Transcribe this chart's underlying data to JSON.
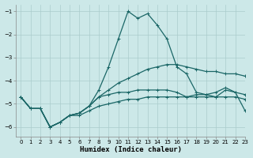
{
  "xlabel": "Humidex (Indice chaleur)",
  "bg_color": "#cce8e8",
  "grid_color": "#aacccc",
  "line_color": "#1a6666",
  "xlim": [
    -0.5,
    23
  ],
  "ylim": [
    -6.4,
    -0.7
  ],
  "yticks": [
    -6,
    -5,
    -4,
    -3,
    -2,
    -1
  ],
  "xticks": [
    0,
    1,
    2,
    3,
    4,
    5,
    6,
    7,
    8,
    9,
    10,
    11,
    12,
    13,
    14,
    15,
    16,
    17,
    18,
    19,
    20,
    21,
    22,
    23
  ],
  "line1_x": [
    0,
    1,
    2,
    3,
    4,
    5,
    6,
    7,
    8,
    9,
    10,
    11,
    12,
    13,
    14,
    15,
    16,
    17,
    18,
    19,
    20,
    21,
    22,
    23
  ],
  "line1_y": [
    -4.7,
    -5.2,
    -5.2,
    -6.0,
    -5.8,
    -5.5,
    -5.4,
    -5.1,
    -4.7,
    -4.4,
    -4.1,
    -3.9,
    -3.7,
    -3.5,
    -3.4,
    -3.3,
    -3.3,
    -3.4,
    -3.5,
    -3.6,
    -3.6,
    -3.7,
    -3.7,
    -3.8
  ],
  "line2_x": [
    0,
    1,
    2,
    3,
    4,
    5,
    6,
    7,
    8,
    9,
    10,
    11,
    12,
    13,
    14,
    15,
    16,
    17,
    18,
    19,
    20,
    21,
    22,
    23
  ],
  "line2_y": [
    -4.7,
    -5.2,
    -5.2,
    -6.0,
    -5.8,
    -5.5,
    -5.4,
    -5.1,
    -4.4,
    -3.4,
    -2.2,
    -1.0,
    -1.3,
    -1.1,
    -1.6,
    -2.2,
    -3.4,
    -3.7,
    -4.5,
    -4.6,
    -4.7,
    -4.4,
    -4.5,
    -5.3
  ],
  "line3_x": [
    0,
    1,
    2,
    3,
    4,
    5,
    6,
    7,
    8,
    9,
    10,
    11,
    12,
    13,
    14,
    15,
    16,
    17,
    18,
    19,
    20,
    21,
    22,
    23
  ],
  "line3_y": [
    -4.7,
    -5.2,
    -5.2,
    -6.0,
    -5.8,
    -5.5,
    -5.4,
    -5.1,
    -4.7,
    -4.6,
    -4.5,
    -4.5,
    -4.4,
    -4.4,
    -4.4,
    -4.4,
    -4.5,
    -4.7,
    -4.6,
    -4.6,
    -4.5,
    -4.3,
    -4.5,
    -4.6
  ],
  "line4_x": [
    0,
    1,
    2,
    3,
    4,
    5,
    6,
    7,
    8,
    9,
    10,
    11,
    12,
    13,
    14,
    15,
    16,
    17,
    18,
    19,
    20,
    21,
    22,
    23
  ],
  "line4_y": [
    -4.7,
    -5.2,
    -5.2,
    -6.0,
    -5.8,
    -5.5,
    -5.5,
    -5.3,
    -5.1,
    -5.0,
    -4.9,
    -4.8,
    -4.8,
    -4.7,
    -4.7,
    -4.7,
    -4.7,
    -4.7,
    -4.7,
    -4.7,
    -4.7,
    -4.7,
    -4.7,
    -4.8
  ]
}
